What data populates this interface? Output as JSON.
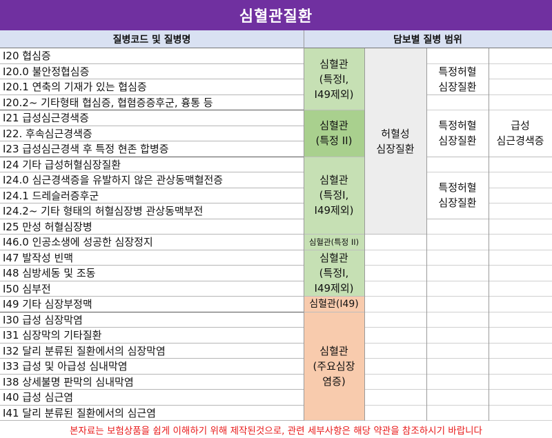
{
  "title": "심혈관질환",
  "headers": {
    "left": "질병코드 및 질병명",
    "right": "담보별 질병 범위"
  },
  "rows": [
    "I20 협심증",
    "I20.0 불안정협심증",
    "I20.1 연축의 기재가 있는 협심증",
    "I20.2~ 기타형태 협심증, 협혐증증후군, 흉통 등",
    "I21 급성심근경색증",
    "I22. 후속심근경색증",
    "I23 급성심근경색 후 특정 현존 합병증",
    "I24 기타 급성허혈심장질환",
    "I24.0 심근경색증을 유발하지 않은 관상동맥혈전증",
    "I24.1 드레슬러증후군",
    "I24.2~ 기타 형태의 허혈심장병 관상동맥부전",
    "I25 만성 허혈심장병",
    "I46.0 인공소생에 성공한 심장정지",
    "I47 발작성 빈맥",
    "I48 심방세동 및 조동",
    "I50 심부전",
    "I49 기타 심장부정맥",
    "I30 급성 심장막염",
    "I31 심장막의 기타질환",
    "I32 달리 분류된 질환에서의 심장막염",
    "I33 급성 및 아급성 심내막염",
    "I38 상세불명 판막의 심내막염",
    "I40 급성 심근염",
    "I41 달리 분류된 질환에서의 심근염"
  ],
  "coverage": {
    "col1": [
      {
        "line1": "심혈관",
        "line2": "(특정I,",
        "line3": "I49제외)"
      },
      {
        "line1": "심혈관",
        "line2": "(특정 II)"
      },
      {
        "line1": "심혈관",
        "line2": "(특정I,",
        "line3": "I49제외)"
      },
      {
        "line1": "심혈관(특정 II)"
      },
      {
        "line1": "심혈관",
        "line2": "(특정I,",
        "line3": "I49제외)"
      },
      {
        "line1": "심혈관(I49)"
      },
      {
        "line1": "심혈관",
        "line2": "(주요심장",
        "line3": "염증)"
      }
    ],
    "col2": {
      "line1": "허혈성",
      "line2": "심장질환"
    },
    "col3": [
      {
        "line1": "특정허혈",
        "line2": "심장질환"
      },
      {
        "line1": "특정허혈",
        "line2": "심장질환"
      },
      {
        "line1": "특정허혈",
        "line2": "심장질환"
      }
    ],
    "col4": {
      "line1": "급성",
      "line2": "심근경색증"
    }
  },
  "colors": {
    "title_bg": "#7030a0",
    "header_bg": "#d9e1f2",
    "green": "#c6e0b4",
    "green_dark": "#a9d08e",
    "orange": "#f8cbad",
    "gray": "#ededed",
    "notice": "#e81919"
  },
  "footer": "본자료는 보험상품을 쉽게 이해하기 위해 제작된것으로, 관련 세부사항은 해당 약관을 참조하시기 바랍니다"
}
